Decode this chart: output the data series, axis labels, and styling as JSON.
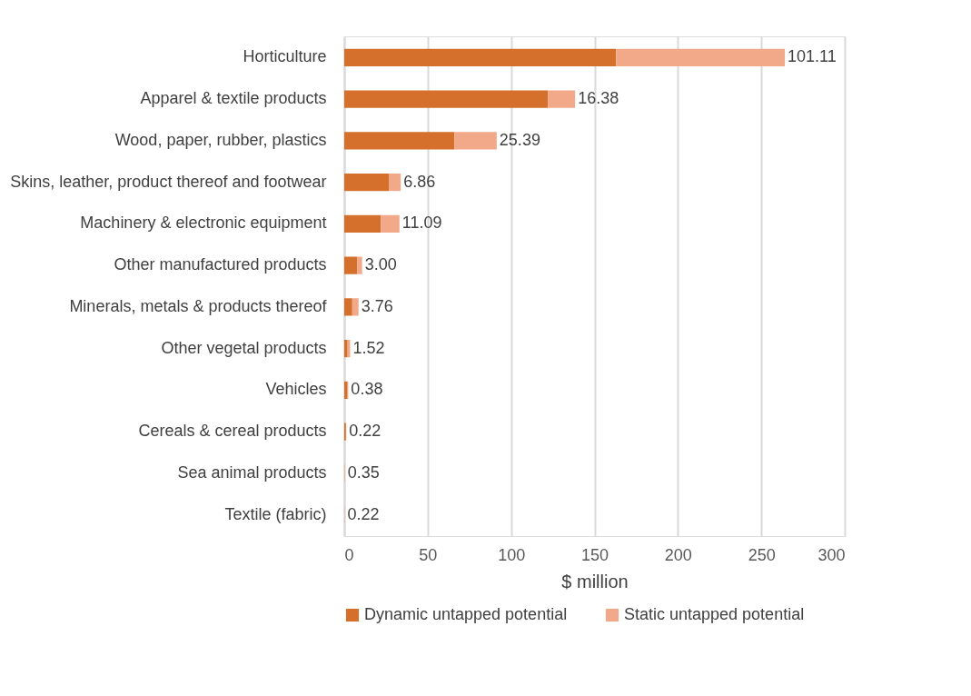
{
  "chart_data": {
    "type": "bar",
    "orientation": "horizontal",
    "stacked": true,
    "categories": [
      "Horticulture",
      "Apparel & textile products",
      "Wood, paper, rubber, plastics",
      "Skins, leather, product thereof and footwear",
      "Machinery & electronic equipment",
      "Other manufactured products",
      "Minerals, metals & products thereof",
      "Other vegetal products",
      "Vehicles",
      "Cereals & cereal products",
      "Sea animal products",
      "Textile (fabric)"
    ],
    "series": [
      {
        "name": "Dynamic untapped potential",
        "color": "#d4702c",
        "values": [
          163,
          122,
          66,
          27,
          22,
          7.7,
          4.8,
          2.0,
          2.0,
          1.0,
          0,
          0
        ]
      },
      {
        "name": "Static untapped potential",
        "color": "#f2a98a",
        "values": [
          101.11,
          16.38,
          25.39,
          6.86,
          11.09,
          3.0,
          3.76,
          1.52,
          0.38,
          0.22,
          0.35,
          0.22
        ],
        "value_labels": [
          "101.11",
          "16.38",
          "25.39",
          "6.86",
          "11.09",
          "3.00",
          "3.76",
          "1.52",
          "0.38",
          "0.22",
          "0.35",
          "0.22"
        ]
      }
    ],
    "xlabel": "$ million",
    "xlim": [
      0,
      300
    ],
    "xticks": [
      0,
      50,
      100,
      150,
      200,
      250,
      300
    ],
    "grid": "x",
    "legend": "bottom"
  }
}
